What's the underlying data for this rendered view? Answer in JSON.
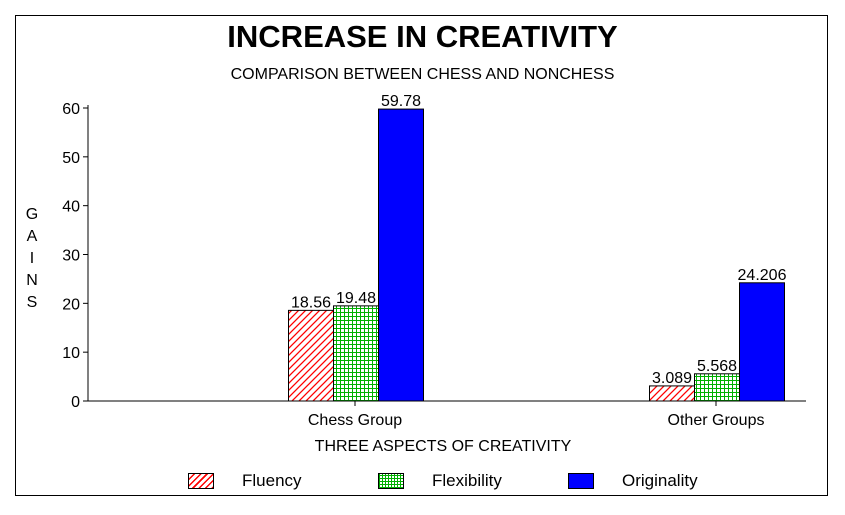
{
  "chart_data": {
    "type": "bar",
    "title": "INCREASE IN CREATIVITY",
    "subtitle": "COMPARISON BETWEEN CHESS AND NONCHESS",
    "xlabel": "THREE ASPECTS OF CREATIVITY",
    "ylabel": "GAINS",
    "ylim": [
      0,
      60
    ],
    "yticks": [
      0,
      10,
      20,
      30,
      40,
      50,
      60
    ],
    "categories": [
      "Chess Group",
      "Other Groups"
    ],
    "legend_position": "bottom",
    "series": [
      {
        "name": "Fluency",
        "values": [
          18.56,
          3.089
        ],
        "labels": [
          "18.56",
          "3.089"
        ],
        "color": "#ff0000",
        "pattern": "diagonal-hatch"
      },
      {
        "name": "Flexibility",
        "values": [
          19.48,
          5.568
        ],
        "labels": [
          "19.48",
          "5.568"
        ],
        "color": "#00a000",
        "pattern": "grid"
      },
      {
        "name": "Originality",
        "values": [
          59.78,
          24.206
        ],
        "labels": [
          "59.78",
          "24.206"
        ],
        "color": "#0000ff",
        "pattern": "solid"
      }
    ]
  }
}
